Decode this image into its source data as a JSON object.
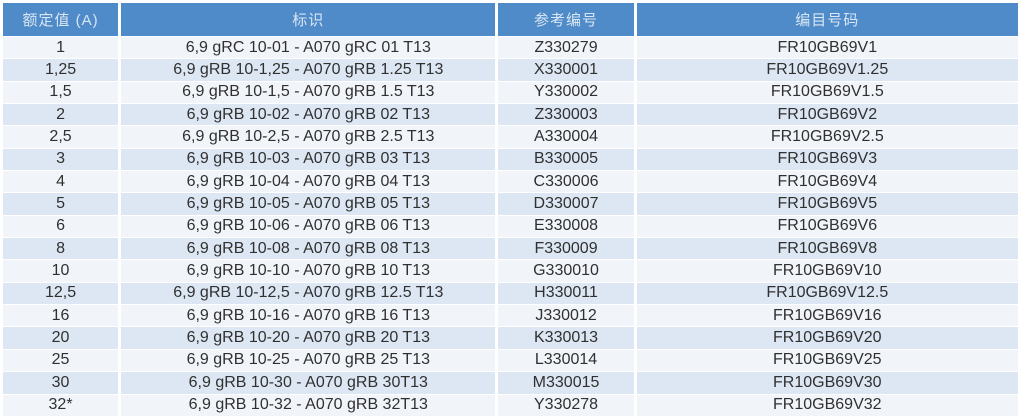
{
  "colors": {
    "header_bg": "#4e8bc8",
    "header_text": "#d9e6f4",
    "row_light": "#f1f5fa",
    "row_alt": "#dce7f3",
    "body_text": "#303030",
    "divider": "#ffffff"
  },
  "table": {
    "columns": [
      {
        "key": "rating",
        "label": "额定值 (A)"
      },
      {
        "key": "marking",
        "label": "标识"
      },
      {
        "key": "reference",
        "label": "参考编号"
      },
      {
        "key": "catalog",
        "label": "编目号码"
      }
    ],
    "rows": [
      [
        "1",
        "6,9 gRC 10-01 - A070 gRC 01 T13",
        "Z330279",
        "FR10GB69V1"
      ],
      [
        "1,25",
        "6,9 gRB 10-1,25 - A070 gRB 1.25 T13",
        "X330001",
        "FR10GB69V1.25"
      ],
      [
        "1,5",
        "6,9 gRB 10-1,5 - A070 gRB 1.5 T13",
        "Y330002",
        "FR10GB69V1.5"
      ],
      [
        "2",
        "6,9 gRB 10-02 - A070 gRB 02 T13",
        "Z330003",
        "FR10GB69V2"
      ],
      [
        "2,5",
        "6,9 gRB 10-2,5 - A070 gRB 2.5 T13",
        "A330004",
        "FR10GB69V2.5"
      ],
      [
        "3",
        "6,9 gRB 10-03 - A070 gRB 03 T13",
        "B330005",
        "FR10GB69V3"
      ],
      [
        "4",
        "6,9 gRB 10-04 - A070 gRB 04 T13",
        "C330006",
        "FR10GB69V4"
      ],
      [
        "5",
        "6,9 gRB 10-05 - A070 gRB 05 T13",
        "D330007",
        "FR10GB69V5"
      ],
      [
        "6",
        "6,9 gRB 10-06 - A070 gRB 06 T13",
        "E330008",
        "FR10GB69V6"
      ],
      [
        "8",
        "6,9 gRB 10-08 - A070 gRB 08 T13",
        "F330009",
        "FR10GB69V8"
      ],
      [
        "10",
        "6,9 gRB 10-10 - A070 gRB 10 T13",
        "G330010",
        "FR10GB69V10"
      ],
      [
        "12,5",
        "6,9 gRB 10-12,5 - A070 gRB 12.5 T13",
        "H330011",
        "FR10GB69V12.5"
      ],
      [
        "16",
        "6,9 gRB 10-16 - A070 gRB 16 T13",
        "J330012",
        "FR10GB69V16"
      ],
      [
        "20",
        "6,9 gRB 10-20 - A070 gRB 20 T13",
        "K330013",
        "FR10GB69V20"
      ],
      [
        "25",
        "6,9 gRB 10-25 - A070 gRB 25 T13",
        "L330014",
        "FR10GB69V25"
      ],
      [
        "30",
        "6,9 gRB 10-30 - A070 gRB 30T13",
        "M330015",
        "FR10GB69V30"
      ],
      [
        "32*",
        "6,9 gRB 10-32 - A070 gRB 32T13",
        "Y330278",
        "FR10GB69V32"
      ]
    ]
  }
}
